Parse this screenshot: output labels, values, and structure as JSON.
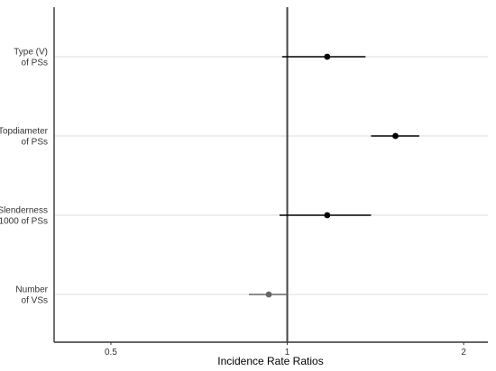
{
  "chart_data": {
    "type": "scatter",
    "subtype": "forest-plot",
    "title": "",
    "xlabel": "Incidence Rate Ratios",
    "ylabel": "",
    "x_scale": "log",
    "xlim": [
      0.4,
      2.2
    ],
    "x_ticks": [
      {
        "value": 0.5,
        "label": "0.5"
      },
      {
        "value": 1,
        "label": "1"
      },
      {
        "value": 2,
        "label": "2"
      }
    ],
    "reference_line": 1,
    "grid": {
      "horizontal": true,
      "vertical": false
    },
    "legend": "none",
    "terms": [
      {
        "label_lines": [
          "Type (V)",
          "of PSs"
        ],
        "estimate": 1.17,
        "ci_low": 0.98,
        "ci_high": 1.36,
        "color": "#000000"
      },
      {
        "label_lines": [
          "Topdiameter",
          "of PSs"
        ],
        "estimate": 1.53,
        "ci_low": 1.39,
        "ci_high": 1.68,
        "color": "#000000"
      },
      {
        "label_lines": [
          "Slenderness",
          "1000 of PSs"
        ],
        "estimate": 1.17,
        "ci_low": 0.97,
        "ci_high": 1.39,
        "color": "#000000"
      },
      {
        "label_lines": [
          "Number",
          "of VSs"
        ],
        "estimate": 0.93,
        "ci_low": 0.86,
        "ci_high": 1.0,
        "color": "#666666"
      }
    ],
    "colors": {
      "positive": "#000000",
      "negative": "#666666",
      "axis": "#333333",
      "grid": "#dddddd"
    }
  }
}
